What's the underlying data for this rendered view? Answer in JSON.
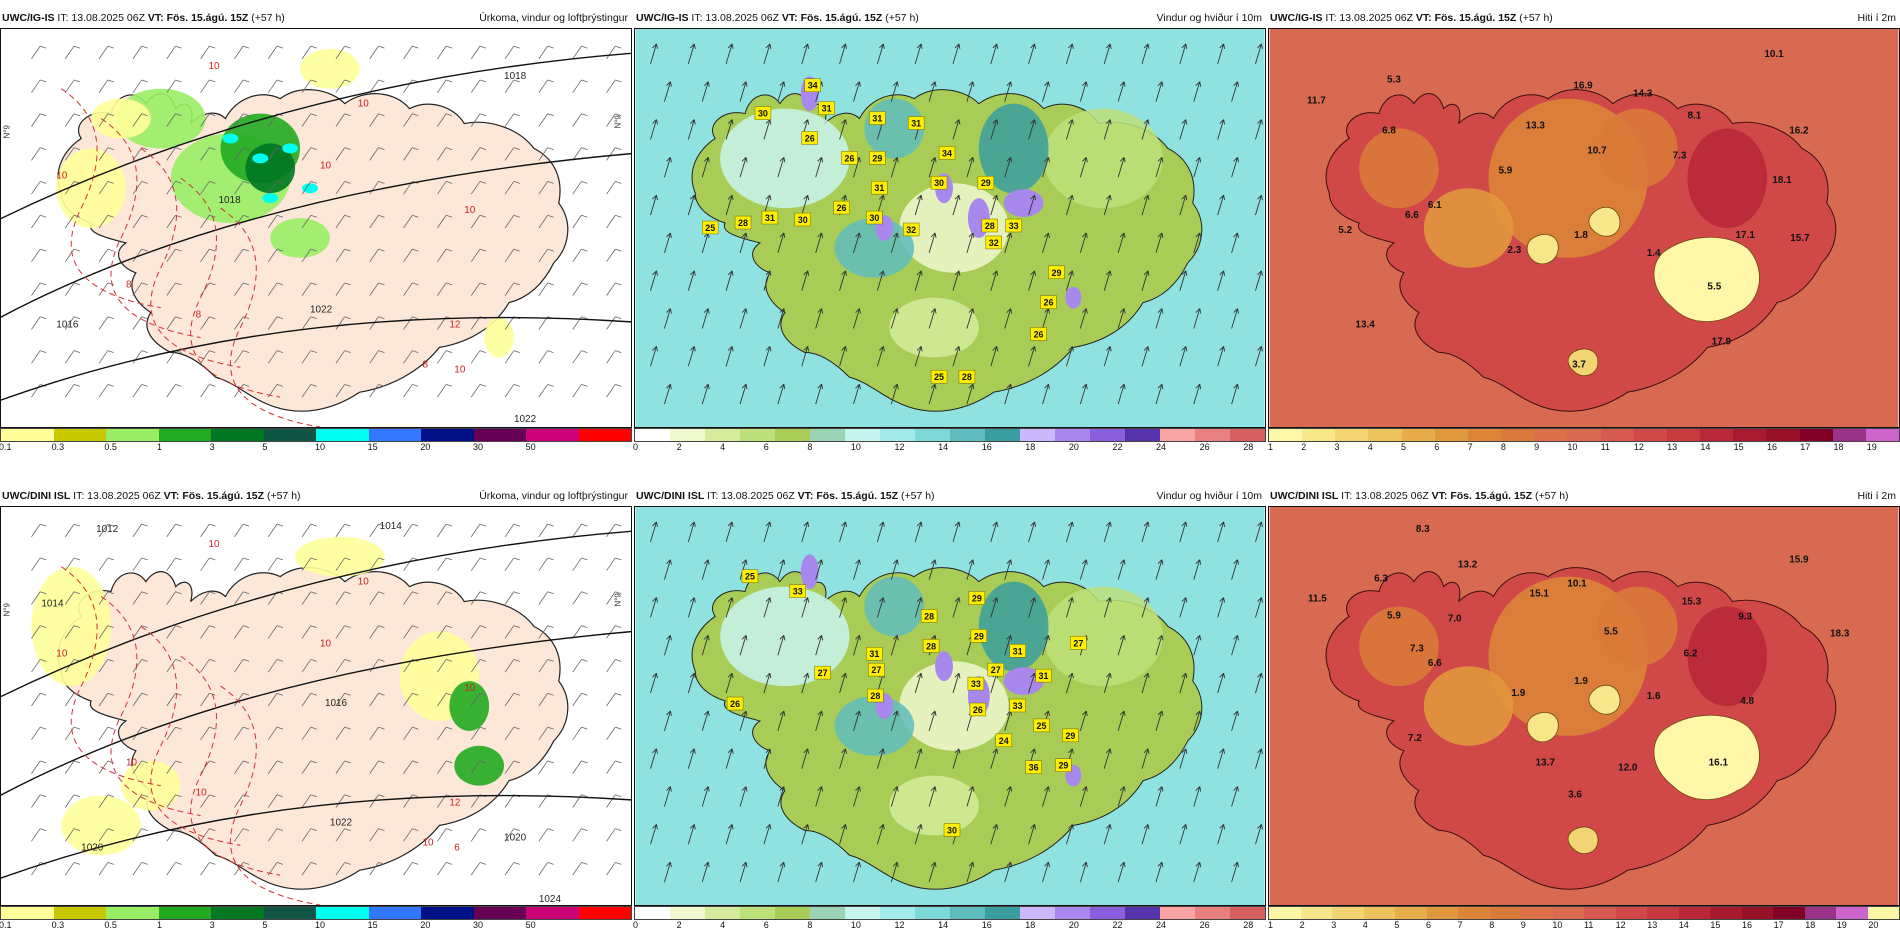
{
  "rows": [
    {
      "model": "UWC/IG-IS",
      "panels": [
        {
          "kind": "precip",
          "it_label": "IT: 13.08.2025 06Z",
          "vt_label": "VT: Fös. 15.ágú. 15Z",
          "lead": "(+57 h)",
          "title_right": "Úrkoma, vindur og loftþrýstingur",
          "side_labels": [
            "N°9",
            "N°9"
          ],
          "isobar_labels": [
            "1018",
            "1016",
            "1018",
            "1022",
            "1022"
          ],
          "temp_labels": [
            "10",
            "10",
            "10",
            "10",
            "8",
            "8",
            "10",
            "12",
            "10",
            "8"
          ],
          "scale_ticks": [
            "0.1",
            "0.3",
            "0.5",
            "1",
            "3",
            "5",
            "10",
            "15",
            "20",
            "30",
            "50"
          ]
        },
        {
          "kind": "wind",
          "it_label": "IT: 13.08.2025 06Z",
          "vt_label": "VT: Fös. 15.ágú. 15Z",
          "lead": "(+57 h)",
          "title_right": "Vindur og hviður í 10m",
          "gust_labels": [
            "34",
            "31",
            "30",
            "26",
            "31",
            "31",
            "34",
            "29",
            "26",
            "30",
            "31",
            "29",
            "25",
            "28",
            "31",
            "30",
            "26",
            "30",
            "32",
            "28",
            "33",
            "32",
            "29",
            "26",
            "26",
            "28",
            "25"
          ],
          "scale_ticks": [
            "0",
            "2",
            "4",
            "6",
            "8",
            "10",
            "12",
            "14",
            "16",
            "18",
            "20",
            "22",
            "24",
            "26",
            "28"
          ]
        },
        {
          "kind": "temp",
          "it_label": "IT: 13.08.2025 06Z",
          "vt_label": "VT: Fös. 15.ágú. 15Z",
          "lead": "(+57 h)",
          "title_right": "Hiti í 2m",
          "temp_values": [
            "10.1",
            "5.3",
            "11.7",
            "16.9",
            "14.3",
            "6.8",
            "13.3",
            "8.1",
            "16.2",
            "10.7",
            "7.3",
            "5.9",
            "18.1",
            "6.1",
            "6.6",
            "5.2",
            "1.8",
            "2.3",
            "17.1",
            "15.7",
            "1.4",
            "5.5",
            "13.4",
            "17.9",
            "3.7"
          ],
          "scale_ticks": [
            "1",
            "2",
            "3",
            "4",
            "5",
            "6",
            "7",
            "8",
            "9",
            "10",
            "11",
            "12",
            "13",
            "14",
            "15",
            "16",
            "17",
            "18",
            "19"
          ]
        }
      ]
    },
    {
      "model": "UWC/DINI ISL",
      "panels": [
        {
          "kind": "precip",
          "it_label": "IT: 13.08.2025 06Z",
          "vt_label": "VT: Fös. 15.ágú. 15Z",
          "lead": "(+57 h)",
          "title_right": "Úrkoma, vindur og loftþrýstingur",
          "side_labels": [
            "N°9",
            "N°9"
          ],
          "isobar_labels": [
            "1012",
            "1014",
            "1014",
            "1016",
            "1020",
            "1022",
            "1020",
            "1024"
          ],
          "temp_labels": [
            "10",
            "10",
            "10",
            "10",
            "10",
            "10",
            "10",
            "12",
            "6",
            "10"
          ],
          "scale_ticks": [
            "0.1",
            "0.3",
            "0.5",
            "1",
            "3",
            "5",
            "10",
            "15",
            "20",
            "30",
            "50"
          ]
        },
        {
          "kind": "wind",
          "it_label": "IT: 13.08.2025 06Z",
          "vt_label": "VT: Fös. 15.ágú. 15Z",
          "lead": "(+57 h)",
          "title_right": "Vindur og hviður í 10m",
          "gust_labels": [
            "25",
            "33",
            "29",
            "29",
            "28",
            "28",
            "31",
            "31",
            "27",
            "26",
            "27",
            "27",
            "28",
            "33",
            "27",
            "31",
            "26",
            "33",
            "25",
            "29",
            "24",
            "36",
            "30",
            "29"
          ],
          "scale_ticks": [
            "0",
            "2",
            "4",
            "6",
            "8",
            "10",
            "12",
            "14",
            "16",
            "18",
            "20",
            "22",
            "24",
            "26",
            "28"
          ]
        },
        {
          "kind": "temp",
          "it_label": "IT: 13.08.2025 06Z",
          "vt_label": "VT: Fös. 15.ágú. 15Z",
          "lead": "(+57 h)",
          "title_right": "Hiti í 2m",
          "temp_values": [
            "8.3",
            "13.2",
            "6.3",
            "15.9",
            "10.1",
            "15.1",
            "11.5",
            "15.3",
            "5.9",
            "7.0",
            "9.3",
            "18.3",
            "5.5",
            "7.3",
            "6.6",
            "6.2",
            "1.9",
            "1.9",
            "1.6",
            "4.8",
            "7.2",
            "13.7",
            "12.0",
            "16.1",
            "3.6"
          ],
          "scale_ticks": [
            "1",
            "2",
            "3",
            "4",
            "5",
            "6",
            "7",
            "8",
            "9",
            "10",
            "11",
            "12",
            "13",
            "14",
            "15",
            "16",
            "17",
            "18",
            "19",
            "20"
          ]
        }
      ]
    }
  ],
  "colors": {
    "precip": [
      "#ffff99",
      "#c8c800",
      "#99ee66",
      "#22aa22",
      "#007722",
      "#115544",
      "#00ffee",
      "#3377ff",
      "#001188",
      "#660055",
      "#cc0077",
      "#ff0000"
    ],
    "wind": [
      "#ffffff",
      "#f0f8d0",
      "#d4ec9c",
      "#bde07a",
      "#a8cc55",
      "#9bd4b4",
      "#c8f4f0",
      "#a2ebea",
      "#7fd8d8",
      "#5fbcbe",
      "#3a9ea0",
      "#cbb8ff",
      "#a988ee",
      "#8a5edd",
      "#5533aa",
      "#f9a4a4",
      "#e98080",
      "#d66060"
    ],
    "temp": [
      "#fff7a8",
      "#f8e68a",
      "#f2d473",
      "#ecc25e",
      "#e6ad4a",
      "#e0983e",
      "#dc8438",
      "#d97a3a",
      "#dc7048",
      "#d96a52",
      "#d75a50",
      "#d04848",
      "#c63a40",
      "#b92838",
      "#a81a30",
      "#961028",
      "#7f0024",
      "#993388",
      "#cc66cc"
    ]
  }
}
